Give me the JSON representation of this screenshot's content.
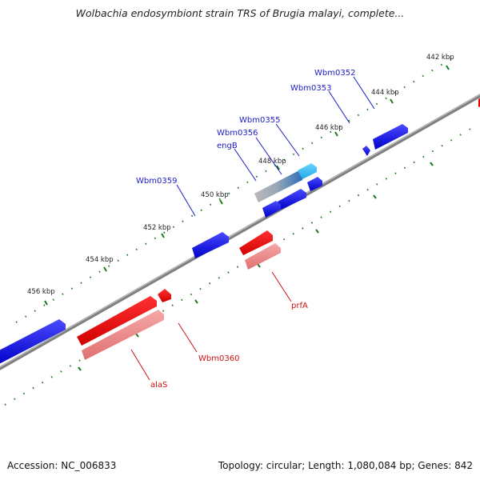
{
  "title": "Wolbachia endosymbiont strain TRS of Brugia malayi, complete...",
  "footer": {
    "accession": "Accession: NC_006833",
    "summary": "Topology: circular; Length: 1,080,084 bp; Genes: 842"
  },
  "colors": {
    "forward_gene": "#1010e0",
    "reverse_gene": "#ee0000",
    "reverse_gene_light": "#f08c8c",
    "backbone": "#808080",
    "ticks": "#1a7a1a",
    "forward_label": "#1a1acc",
    "reverse_label": "#cc1111"
  },
  "scale_ticks": [
    "442 kbp",
    "444 kbp",
    "446 kbp",
    "448 kbp",
    "450 kbp",
    "452 kbp",
    "454 kbp",
    "456 kbp"
  ],
  "forward_labels": [
    "Wbm0352",
    "Wbm0353",
    "Wbm0355",
    "Wbm0356",
    "engB",
    "Wbm0359"
  ],
  "reverse_labels": [
    "prfA",
    "Wbm0360",
    "alaS"
  ]
}
